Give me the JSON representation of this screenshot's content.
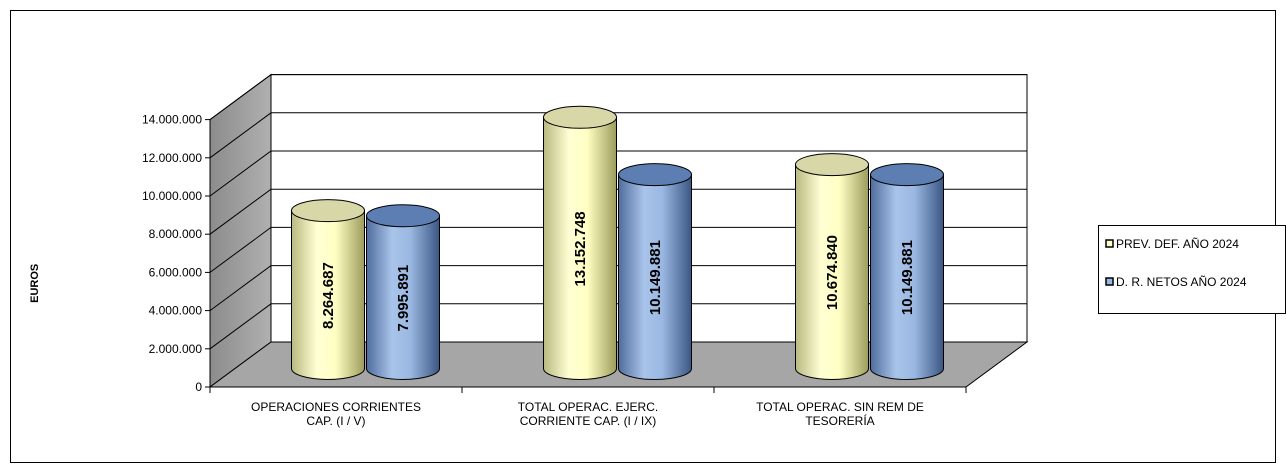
{
  "chart_data": {
    "type": "bar",
    "subtype": "3d-cylinder-clustered",
    "ylabel": "EUROS",
    "xlabel": "",
    "ylim": [
      0,
      14000000
    ],
    "ytick_step": 2000000,
    "ytick_labels": [
      "0",
      "2.000.000",
      "4.000.000",
      "6.000.000",
      "8.000.000",
      "10.000.000",
      "12.000.000",
      "14.000.000"
    ],
    "grid": true,
    "legend_position": "right",
    "categories": [
      [
        "OPERACIONES CORRIENTES",
        "CAP. (I / V)"
      ],
      [
        "TOTAL OPERAC. EJERC.",
        "CORRIENTE CAP. (I / IX)"
      ],
      [
        "TOTAL OPERAC. SIN REM DE",
        "TESORERÍA"
      ]
    ],
    "series": [
      {
        "name": "PREV. DEF. AÑO 2024",
        "values": [
          8264687,
          13152748,
          10674840
        ],
        "labels": [
          "8.264.687",
          "13.152.748",
          "10.674.840"
        ],
        "color": "#ffffcc"
      },
      {
        "name": "D. R. NETOS AÑO 2024",
        "values": [
          7995891,
          10149881,
          10149881
        ],
        "labels": [
          "7.995.891",
          "10.149.881",
          "10.149.881"
        ],
        "color": "#99b8e0"
      }
    ]
  }
}
